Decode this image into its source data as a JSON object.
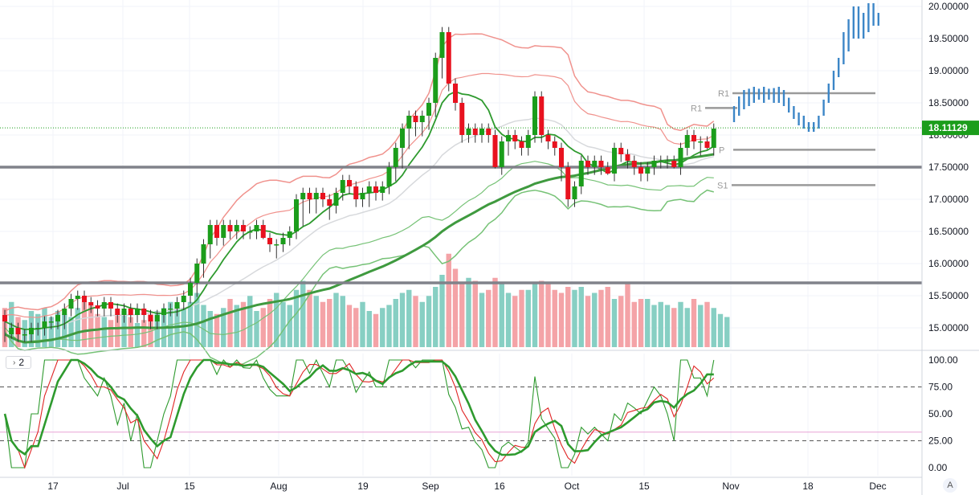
{
  "chart_data": {
    "type": "candlestick",
    "instrument_note": "",
    "price_axis": {
      "range": [
        14.6,
        20.1
      ],
      "ticks": [
        "20.00000",
        "19.50000",
        "19.00000",
        "18.50000",
        "18.00000",
        "17.50000",
        "17.00000",
        "16.50000",
        "16.00000",
        "15.50000",
        "15.00000"
      ],
      "last_price": "18.11129",
      "last_price_value": 18.11129
    },
    "oscillator_axis": {
      "range": [
        -6,
        106
      ],
      "ticks": [
        "100.00",
        "75.00",
        "50.00",
        "25.00",
        "0.00"
      ],
      "dashed_levels": [
        25,
        75
      ],
      "pink_level": 33
    },
    "time_axis": {
      "labels": [
        "17",
        "Jul",
        "15",
        "Aug",
        "19",
        "Sep",
        "16",
        "Oct",
        "15",
        "Nov",
        "18",
        "Dec"
      ]
    },
    "horizontal_levels": [
      17.5,
      15.7
    ],
    "pivot_labels": [
      {
        "label": "R1",
        "value": 18.65
      },
      {
        "label": "R1",
        "value": 18.42
      },
      {
        "label": "P",
        "value": 17.77
      },
      {
        "label": "S1",
        "value": 17.22
      }
    ],
    "candles": [
      [
        15.2,
        14.8,
        15.1
      ],
      [
        14.9,
        14.85,
        15.0
      ],
      [
        15.0,
        14.8,
        14.9
      ],
      [
        14.9,
        14.8,
        14.9
      ],
      [
        14.9,
        14.8,
        15.0
      ],
      [
        15.0,
        14.9,
        15.0
      ],
      [
        15.0,
        14.9,
        15.1
      ],
      [
        15.1,
        15.0,
        15.1
      ],
      [
        15.1,
        15.0,
        15.2
      ],
      [
        15.2,
        15.0,
        15.3
      ],
      [
        15.3,
        15.2,
        15.45
      ],
      [
        15.45,
        15.3,
        15.5
      ],
      [
        15.5,
        15.3,
        15.4
      ],
      [
        15.4,
        15.25,
        15.35
      ],
      [
        15.35,
        15.2,
        15.3
      ],
      [
        15.3,
        15.2,
        15.4
      ],
      [
        15.4,
        15.2,
        15.3
      ],
      [
        15.3,
        15.1,
        15.2
      ],
      [
        15.2,
        15.1,
        15.3
      ],
      [
        15.3,
        15.1,
        15.2
      ],
      [
        15.2,
        15.1,
        15.3
      ],
      [
        15.3,
        15.1,
        15.2
      ],
      [
        15.2,
        15.0,
        15.1
      ],
      [
        15.1,
        15.0,
        15.2
      ],
      [
        15.2,
        15.1,
        15.3
      ],
      [
        15.3,
        15.2,
        15.3
      ],
      [
        15.3,
        15.2,
        15.4
      ],
      [
        15.4,
        15.3,
        15.5
      ],
      [
        15.5,
        15.4,
        15.7
      ],
      [
        15.7,
        15.5,
        16.0
      ],
      [
        16.0,
        15.8,
        16.3
      ],
      [
        16.3,
        16.1,
        16.6
      ],
      [
        16.6,
        16.3,
        16.4
      ],
      [
        16.4,
        16.3,
        16.6
      ],
      [
        16.6,
        16.4,
        16.5
      ],
      [
        16.5,
        16.4,
        16.6
      ],
      [
        16.6,
        16.4,
        16.5
      ],
      [
        16.5,
        16.4,
        16.5
      ],
      [
        16.5,
        16.4,
        16.6
      ],
      [
        16.6,
        16.4,
        16.4
      ],
      [
        16.4,
        16.2,
        16.3
      ],
      [
        16.3,
        16.1,
        16.3
      ],
      [
        16.3,
        16.2,
        16.4
      ],
      [
        16.4,
        16.3,
        16.5
      ],
      [
        16.5,
        16.4,
        17.0
      ],
      [
        17.0,
        16.6,
        17.1
      ],
      [
        17.1,
        16.8,
        17.0
      ],
      [
        17.0,
        16.8,
        17.1
      ],
      [
        17.1,
        16.9,
        17.0
      ],
      [
        17.0,
        16.7,
        16.9
      ],
      [
        16.9,
        16.8,
        17.1
      ],
      [
        17.1,
        17.0,
        17.3
      ],
      [
        17.3,
        17.1,
        17.2
      ],
      [
        17.2,
        16.9,
        17.0
      ],
      [
        17.0,
        16.9,
        17.1
      ],
      [
        17.1,
        16.9,
        17.2
      ],
      [
        17.2,
        17.0,
        17.1
      ],
      [
        17.1,
        17.0,
        17.2
      ],
      [
        17.2,
        17.1,
        17.5
      ],
      [
        17.5,
        17.3,
        17.8
      ],
      [
        17.8,
        17.5,
        18.1
      ],
      [
        18.1,
        17.8,
        18.3
      ],
      [
        18.3,
        18.0,
        18.2
      ],
      [
        18.2,
        18.0,
        18.3
      ],
      [
        18.3,
        18.1,
        18.5
      ],
      [
        18.5,
        18.3,
        19.2
      ],
      [
        19.2,
        18.9,
        19.6
      ],
      [
        19.6,
        18.7,
        18.8
      ],
      [
        18.8,
        18.4,
        18.5
      ],
      [
        18.5,
        17.9,
        18.0
      ],
      [
        18.0,
        17.9,
        18.1
      ],
      [
        18.1,
        17.9,
        18.0
      ],
      [
        18.0,
        17.9,
        18.1
      ],
      [
        18.1,
        17.9,
        18.0
      ],
      [
        18.0,
        17.5,
        17.5
      ],
      [
        17.5,
        17.4,
        17.9
      ],
      [
        17.9,
        17.7,
        18.0
      ],
      [
        18.0,
        17.8,
        17.9
      ],
      [
        17.9,
        17.7,
        17.8
      ],
      [
        17.8,
        17.7,
        18.0
      ],
      [
        18.0,
        17.9,
        18.6
      ],
      [
        18.6,
        17.9,
        18.0
      ],
      [
        18.0,
        17.8,
        17.9
      ],
      [
        17.9,
        17.7,
        17.8
      ],
      [
        17.8,
        17.3,
        17.5
      ],
      [
        17.5,
        16.9,
        17.0
      ],
      [
        17.0,
        16.9,
        17.2
      ],
      [
        17.2,
        17.1,
        17.6
      ],
      [
        17.6,
        17.4,
        17.5
      ],
      [
        17.5,
        17.4,
        17.6
      ],
      [
        17.6,
        17.4,
        17.5
      ],
      [
        17.5,
        17.4,
        17.4
      ],
      [
        17.4,
        17.3,
        17.8
      ],
      [
        17.8,
        17.6,
        17.7
      ],
      [
        17.7,
        17.5,
        17.6
      ],
      [
        17.6,
        17.4,
        17.5
      ],
      [
        17.5,
        17.3,
        17.4
      ],
      [
        17.4,
        17.3,
        17.5
      ],
      [
        17.5,
        17.4,
        17.6
      ],
      [
        17.6,
        17.5,
        17.6
      ],
      [
        17.6,
        17.5,
        17.6
      ],
      [
        17.6,
        17.5,
        17.5
      ],
      [
        17.5,
        17.4,
        17.8
      ],
      [
        17.8,
        17.7,
        18.0
      ],
      [
        18.0,
        17.8,
        17.9
      ],
      [
        17.9,
        17.7,
        17.9
      ],
      [
        17.9,
        17.8,
        17.8
      ],
      [
        17.8,
        17.7,
        18.1
      ]
    ],
    "volume_range": [
      0,
      3200
    ],
    "volumes": [
      1300,
      1500,
      1000,
      900,
      1200,
      1100,
      1300,
      1000,
      1200,
      1100,
      1000,
      1300,
      1500,
      1400,
      1100,
      1000,
      900,
      1100,
      1200,
      1000,
      800,
      900,
      1100,
      1200,
      1300,
      1500,
      1400,
      1300,
      1500,
      1800,
      1400,
      1200,
      1100,
      1300,
      1600,
      1400,
      1500,
      1700,
      1200,
      1300,
      1600,
      1800,
      1500,
      1400,
      1900,
      2200,
      1900,
      1700,
      1500,
      1600,
      1800,
      1700,
      1400,
      1300,
      1500,
      1200,
      1100,
      1300,
      1400,
      1600,
      1800,
      1900,
      1700,
      1500,
      1700,
      2000,
      2400,
      3100,
      2600,
      2100,
      2300,
      2200,
      1800,
      1900,
      2300,
      2100,
      1800,
      1700,
      1900,
      1900,
      2100,
      2200,
      2100,
      1900,
      1800,
      2000,
      1900,
      2000,
      1700,
      1800,
      1900,
      2000,
      1600,
      1700,
      2100,
      1500,
      1600,
      1600,
      1400,
      1500,
      1400,
      1300,
      1500,
      1300,
      1600,
      1400,
      1500,
      1300,
      1100,
      1000
    ],
    "projection": {
      "type": "bars",
      "x_start": 914,
      "spacing": 6.2,
      "values": [
        [
          18.2,
          18.45
        ],
        [
          18.3,
          18.6
        ],
        [
          18.4,
          18.7
        ],
        [
          18.45,
          18.72
        ],
        [
          18.5,
          18.75
        ],
        [
          18.55,
          18.72
        ],
        [
          18.5,
          18.75
        ],
        [
          18.55,
          18.72
        ],
        [
          18.5,
          18.73
        ],
        [
          18.5,
          18.75
        ],
        [
          18.45,
          18.7
        ],
        [
          18.35,
          18.58
        ],
        [
          18.25,
          18.45
        ],
        [
          18.15,
          18.35
        ],
        [
          18.1,
          18.3
        ],
        [
          18.05,
          18.2
        ],
        [
          18.05,
          18.2
        ],
        [
          18.1,
          18.3
        ],
        [
          18.3,
          18.55
        ],
        [
          18.5,
          18.8
        ],
        [
          18.7,
          19.0
        ],
        [
          18.9,
          19.2
        ],
        [
          19.1,
          19.6
        ],
        [
          19.3,
          19.8
        ],
        [
          19.5,
          20.0
        ],
        [
          19.5,
          20.0
        ],
        [
          19.5,
          19.9
        ],
        [
          19.6,
          20.05
        ],
        [
          19.7,
          20.05
        ],
        [
          19.7,
          19.9
        ]
      ]
    },
    "colors": {
      "up": "#089981",
      "up_body": "#1b9d1b",
      "down": "#f23645",
      "down_body": "#e8121f",
      "bb_upper": "#f0928d",
      "bb_lower": "#76c276",
      "sma_main": "#3f9a3f",
      "gray_line": "#d7d9dc",
      "level": "#80828a",
      "projection": "#3c86c7",
      "vol_up": "#87cfc3",
      "vol_down": "#f4a3a7",
      "osc_red": "#e02424",
      "osc_green": "#2e9a2e"
    }
  },
  "ui": {
    "pane_toggle_label": "2",
    "corner_badge": "A"
  }
}
